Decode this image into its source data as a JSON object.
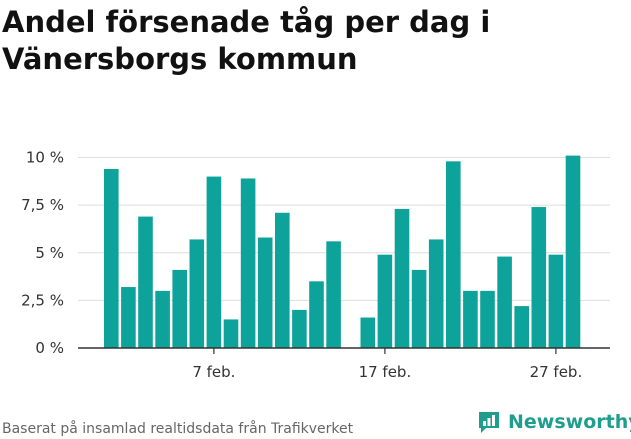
{
  "colors": {
    "bar": "#0ea39a",
    "brand": "#1f9e8e",
    "grid": "#dddddd",
    "axis": "#333333"
  },
  "footer": {
    "source": "Baserat på insamlad realtidsdata från Trafikverket",
    "brand": "Newsworthy",
    "brand_icon": "newsworthy-chart-icon"
  },
  "chart_data": {
    "type": "bar",
    "title": "Andel försenade tåg per dag i Vänersborgs kommun",
    "xlabel": "",
    "ylabel": "",
    "ylim": [
      0,
      10.5
    ],
    "y_ticks": [
      {
        "value": 0,
        "label": "0 %"
      },
      {
        "value": 2.5,
        "label": "2,5 %"
      },
      {
        "value": 5,
        "label": "5 %"
      },
      {
        "value": 7.5,
        "label": "7,5 %"
      },
      {
        "value": 10,
        "label": "10 %"
      }
    ],
    "x_ticks": [
      {
        "date": "2023-02-07",
        "label": "7 feb."
      },
      {
        "date": "2023-02-17",
        "label": "17 feb."
      },
      {
        "date": "2023-02-27",
        "label": "27 feb."
      }
    ],
    "grid": true,
    "categories": [
      "2023-02-01",
      "2023-02-02",
      "2023-02-03",
      "2023-02-04",
      "2023-02-05",
      "2023-02-06",
      "2023-02-07",
      "2023-02-08",
      "2023-02-09",
      "2023-02-10",
      "2023-02-11",
      "2023-02-12",
      "2023-02-13",
      "2023-02-14",
      "2023-02-15",
      "2023-02-16",
      "2023-02-17",
      "2023-02-18",
      "2023-02-19",
      "2023-02-20",
      "2023-02-21",
      "2023-02-22",
      "2023-02-23",
      "2023-02-24",
      "2023-02-25",
      "2023-02-26",
      "2023-02-27",
      "2023-02-28",
      "2023-03-01"
    ],
    "values": [
      9.4,
      3.2,
      6.9,
      3.0,
      4.1,
      5.7,
      9.0,
      1.5,
      8.9,
      5.8,
      7.1,
      2.0,
      3.5,
      5.6,
      null,
      1.6,
      4.9,
      7.3,
      4.1,
      5.7,
      9.8,
      3.0,
      3.0,
      4.8,
      2.2,
      7.4,
      4.9,
      10.1,
      null
    ]
  }
}
